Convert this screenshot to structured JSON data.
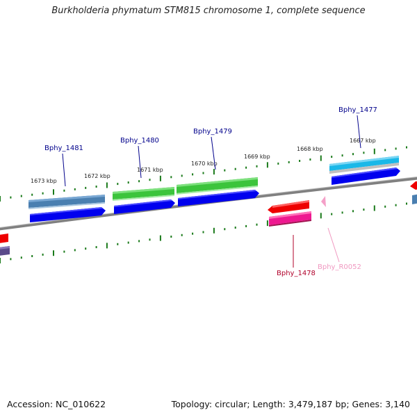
{
  "title": "Burkholderia phymatum STM815 chromosome 1, complete sequence",
  "footer": {
    "accession": "Accession: NC_010622",
    "summary": "Topology: circular; Length: 3,479,187 bp; Genes: 3,140"
  },
  "kbp_labels": [
    "1673 kbp",
    "1672 kbp",
    "1671 kbp",
    "1670 kbp",
    "1669 kbp",
    "1668 kbp",
    "1667 kbp"
  ],
  "gene_labels": {
    "bphy_1481": "Bphy_1481",
    "bphy_1480": "Bphy_1480",
    "bphy_1479": "Bphy_1479",
    "bphy_1477": "Bphy_1477",
    "bphy_1478": "Bphy_1478",
    "bphy_r0052": "Bphy_R0052"
  },
  "colors": {
    "backbone": "#808080",
    "tick": "#1a7a1a",
    "label_blue": "#00008b",
    "label_red": "#b0002a",
    "label_pink": "#f098c0",
    "cds_blue": "#0000ee",
    "steel": "#4a7fb0",
    "green": "#3cc43c",
    "cyan": "#1ab8e8",
    "red": "#ee0000",
    "magenta": "#ee1890",
    "pink": "#f4a0c8"
  }
}
